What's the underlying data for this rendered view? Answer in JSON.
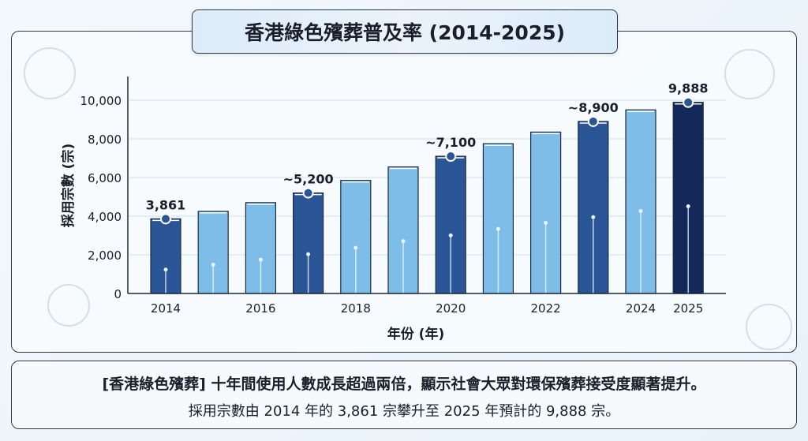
{
  "chart_data": {
    "type": "bar",
    "title": "香港綠色殯葬普及率 (2014-2025)",
    "xlabel": "年份 (年)",
    "ylabel": "採用宗數 (宗)",
    "ylim": [
      0,
      11000
    ],
    "yticks": [
      "0",
      "2,000",
      "4,000",
      "6,000",
      "8,000",
      "10,000"
    ],
    "ytick_values": [
      0,
      2000,
      4000,
      6000,
      8000,
      10000
    ],
    "categories": [
      "2014",
      "2015",
      "2016",
      "2017",
      "2018",
      "2019",
      "2020",
      "2021",
      "2022",
      "2023",
      "2024",
      "2025"
    ],
    "xtick_labels": [
      "2014",
      "",
      "2016",
      "",
      "2018",
      "",
      "2020",
      "",
      "2022",
      "",
      "2024",
      "2025"
    ],
    "values": [
      3861,
      4250,
      4700,
      5200,
      5850,
      6550,
      7100,
      7750,
      8350,
      8900,
      9500,
      9888
    ],
    "data_labels": [
      "3,861",
      "",
      "",
      "~5,200",
      "",
      "",
      "~7,100",
      "",
      "",
      "~8,900",
      "",
      "9,888"
    ],
    "grid": true,
    "colors": {
      "highlight": "#2a5597",
      "normal": "#7fbde9",
      "final": "#14295a"
    }
  },
  "summary": {
    "line1": "[香港綠色殯葬] 十年間使用人數成長超過兩倍，顯示社會大眾對環保殯葬接受度顯著提升。",
    "line2": "採用宗數由 2014 年的 3,861 宗攀升至 2025 年預計的 9,888 宗。"
  }
}
